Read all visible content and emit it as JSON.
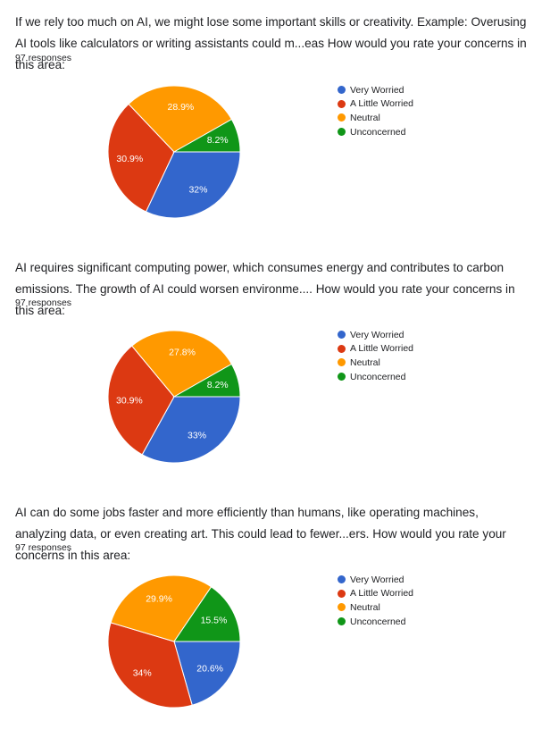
{
  "legend_labels": [
    "Very Worried",
    "A Little Worried",
    "Neutral",
    "Unconcerned"
  ],
  "colors": {
    "very_worried": "#3366cc",
    "a_little_worried": "#dc3912",
    "neutral": "#ff9900",
    "unconcerned": "#109618"
  },
  "questions": [
    {
      "title": "If we rely too much on AI, we might lose some important skills or creativity.  Example:  Overusing AI tools like calculators or writing assistants could m...eas  How would you rate your concerns in this area:",
      "responses": "97 responses"
    },
    {
      "title": "AI requires significant computing power, which consumes energy and contributes to carbon emissions. The growth of AI could worsen environme....  How would you rate your concerns in this area:",
      "responses": "97 responses"
    },
    {
      "title": "AI can do some jobs faster and more efficiently than humans, like operating machines, analyzing data, or even creating art. This could lead to fewer...ers.  How would you rate your concerns in this area:",
      "responses": "97 responses"
    }
  ],
  "chart_data": [
    {
      "type": "pie",
      "categories": [
        "Very Worried",
        "A Little Worried",
        "Neutral",
        "Unconcerned"
      ],
      "values": [
        32,
        30.9,
        28.9,
        8.2
      ],
      "value_labels": [
        "32%",
        "30.9%",
        "28.9%",
        "8.2%"
      ],
      "legend": "right"
    },
    {
      "type": "pie",
      "categories": [
        "Very Worried",
        "A Little Worried",
        "Neutral",
        "Unconcerned"
      ],
      "values": [
        33,
        30.9,
        27.8,
        8.2
      ],
      "value_labels": [
        "33%",
        "30.9%",
        "27.8%",
        "8.2%"
      ],
      "legend": "right"
    },
    {
      "type": "pie",
      "categories": [
        "Very Worried",
        "A Little Worried",
        "Neutral",
        "Unconcerned"
      ],
      "values": [
        20.6,
        34,
        29.9,
        15.5
      ],
      "value_labels": [
        "20.6%",
        "34%",
        "29.9%",
        "15.5%"
      ],
      "legend": "right"
    }
  ]
}
